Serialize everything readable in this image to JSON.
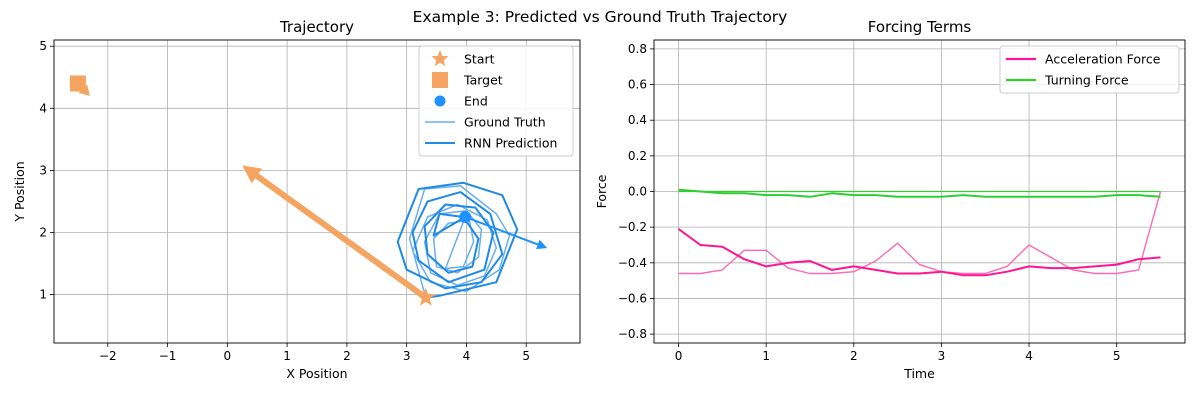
{
  "figure": {
    "suptitle": "Example 3: Predicted vs Ground Truth Trajectory"
  },
  "chart_data": [
    {
      "type": "line",
      "title": "Trajectory",
      "xlabel": "X Position",
      "ylabel": "Y Position",
      "xlim": [
        -2.9,
        5.9
      ],
      "ylim": [
        0.22,
        5.1
      ],
      "xticks": [
        -2,
        -1,
        0,
        1,
        2,
        3,
        4,
        5
      ],
      "yticks": [
        1,
        2,
        3,
        4,
        5
      ],
      "grid": true,
      "legend_position": "top-right",
      "legend": [
        "Start",
        "Target",
        "End",
        "Ground Truth",
        "RNN Prediction"
      ],
      "start": {
        "x": 3.32,
        "y": 0.95,
        "color": "#f4a460"
      },
      "target": {
        "x": -2.5,
        "y": 4.4,
        "color": "#f4a460"
      },
      "end": {
        "x": 3.98,
        "y": 2.25,
        "color": "#1e90ff"
      },
      "heading_arrows": [
        {
          "from": [
            3.32,
            0.95
          ],
          "to": [
            0.25,
            3.08
          ],
          "color": "#f4a460"
        },
        {
          "from": [
            -2.45,
            4.35
          ],
          "to": [
            -2.3,
            4.2
          ],
          "color": "#f4a460"
        },
        {
          "from": [
            3.98,
            2.25
          ],
          "to": [
            5.35,
            1.75
          ],
          "color": "#1e90ff"
        }
      ],
      "series": [
        {
          "name": "Ground Truth",
          "color": "#6aaef0",
          "x": [
            3.32,
            3.05,
            3.3,
            3.9,
            4.5,
            4.72,
            4.55,
            4.0,
            3.4,
            3.1,
            3.35,
            3.85,
            4.35,
            4.5,
            4.3,
            3.85,
            3.4,
            3.3,
            3.55,
            4.0,
            4.25,
            4.2,
            3.85,
            3.5,
            3.45,
            3.7,
            4.05,
            4.12,
            3.95,
            3.65,
            3.98
          ],
          "y": [
            0.95,
            1.9,
            2.7,
            2.75,
            2.3,
            1.95,
            1.4,
            1.05,
            1.2,
            1.7,
            2.25,
            2.45,
            2.2,
            1.75,
            1.3,
            1.15,
            1.35,
            1.85,
            2.3,
            2.35,
            2.05,
            1.6,
            1.35,
            1.45,
            1.9,
            2.15,
            2.2,
            1.85,
            1.45,
            1.42,
            2.25
          ]
        },
        {
          "name": "RNN Prediction",
          "color": "#1e8ae6",
          "x": [
            3.32,
            3.55,
            4.5,
            4.85,
            4.6,
            3.95,
            3.2,
            2.85,
            3.0,
            3.65,
            4.25,
            4.6,
            4.4,
            3.9,
            3.35,
            3.1,
            3.2,
            3.7,
            4.3,
            4.45,
            4.15,
            3.65,
            3.3,
            3.35,
            3.7,
            4.1,
            4.2,
            3.95,
            3.55,
            3.45,
            3.98
          ],
          "y": [
            0.95,
            0.98,
            1.2,
            2.05,
            2.6,
            2.8,
            2.7,
            1.85,
            1.4,
            1.1,
            1.2,
            1.65,
            2.3,
            2.65,
            2.5,
            2.0,
            1.55,
            1.2,
            1.4,
            2.0,
            2.4,
            2.45,
            2.1,
            1.65,
            1.35,
            1.45,
            1.9,
            2.25,
            2.3,
            1.95,
            2.25
          ]
        }
      ]
    },
    {
      "type": "line",
      "title": "Forcing Terms",
      "xlabel": "Time",
      "ylabel": "Force",
      "xlim": [
        -0.28,
        5.78
      ],
      "ylim": [
        -0.85,
        0.85
      ],
      "xticks": [
        0,
        1,
        2,
        3,
        4,
        5
      ],
      "yticks": [
        -0.8,
        -0.6,
        -0.4,
        -0.2,
        0.0,
        0.2,
        0.4,
        0.6,
        0.8
      ],
      "ytick_labels": [
        "−0.8",
        "−0.6",
        "−0.4",
        "−0.2",
        "0.0",
        "0.2",
        "0.4",
        "0.6",
        "0.8"
      ],
      "xtick_labels": [
        "0",
        "1",
        "2",
        "3",
        "4",
        "5"
      ],
      "grid": true,
      "legend_position": "top-right",
      "x": [
        0,
        0.25,
        0.5,
        0.75,
        1.0,
        1.25,
        1.5,
        1.75,
        2.0,
        2.25,
        2.5,
        2.75,
        3.0,
        3.25,
        3.5,
        3.75,
        4.0,
        4.25,
        4.5,
        4.75,
        5.0,
        5.25,
        5.5
      ],
      "series": [
        {
          "name": "Acceleration Force",
          "color": "#ff1493",
          "width": 2,
          "values": [
            -0.21,
            -0.3,
            -0.31,
            -0.38,
            -0.42,
            -0.4,
            -0.39,
            -0.44,
            -0.42,
            -0.44,
            -0.46,
            -0.46,
            -0.45,
            -0.47,
            -0.47,
            -0.45,
            -0.42,
            -0.43,
            -0.43,
            -0.42,
            -0.41,
            -0.38,
            -0.37
          ]
        },
        {
          "name": "Turning Force",
          "color": "#32cd32",
          "width": 2,
          "values": [
            0.01,
            0.0,
            -0.01,
            -0.01,
            -0.02,
            -0.02,
            -0.03,
            -0.01,
            -0.02,
            -0.02,
            -0.03,
            -0.03,
            -0.03,
            -0.02,
            -0.03,
            -0.03,
            -0.03,
            -0.03,
            -0.03,
            -0.03,
            -0.02,
            -0.02,
            -0.03
          ]
        },
        {
          "color": "#ff69b4",
          "width": 1.4,
          "values": [
            -0.46,
            -0.46,
            -0.44,
            -0.33,
            -0.33,
            -0.43,
            -0.46,
            -0.46,
            -0.45,
            -0.39,
            -0.29,
            -0.41,
            -0.45,
            -0.46,
            -0.46,
            -0.42,
            -0.3,
            -0.37,
            -0.44,
            -0.46,
            -0.46,
            -0.44,
            0.0
          ]
        },
        {
          "color": "#32cd32",
          "width": 1.2,
          "values": [
            0.0,
            0.0,
            0.0,
            0.0,
            0.0,
            0.0,
            0.0,
            0.0,
            0.0,
            0.0,
            0.0,
            0.0,
            0.0,
            0.0,
            0.0,
            0.0,
            0.0,
            0.0,
            0.0,
            0.0,
            0.0,
            0.0,
            0.0
          ]
        }
      ]
    }
  ]
}
